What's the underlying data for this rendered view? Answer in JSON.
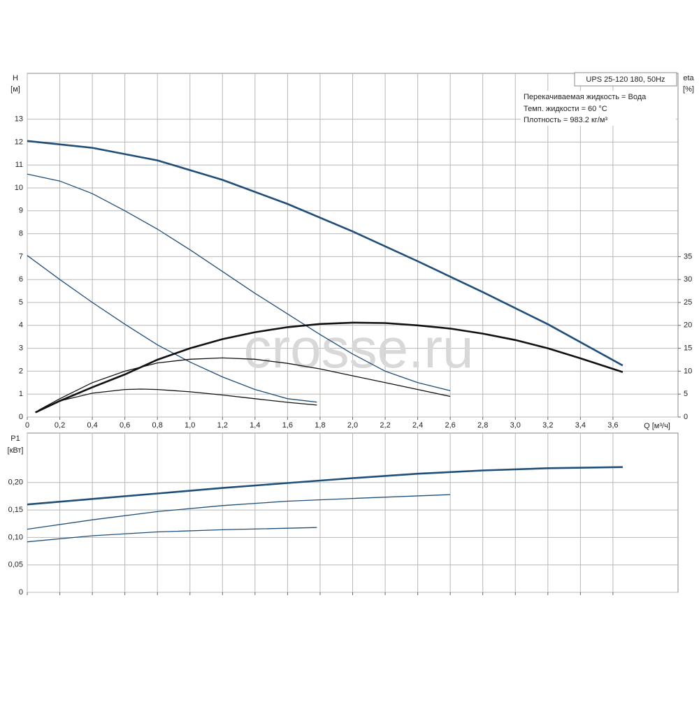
{
  "chart_data": [
    {
      "type": "line",
      "title": "UPS 25-120 180, 50Hz",
      "notes": [
        "Перекачиваемая жидкость = Вода",
        "Темп. жидкости = 60 °C",
        "Плотность = 983.2 кг/м³"
      ],
      "watermark": "crosse.ru",
      "y_label": "H",
      "y_unit": "[м]",
      "y2_label": "eta",
      "y2_unit": "[%]",
      "x_label": "Q [м³/ч]",
      "xlim": [
        0,
        4.0
      ],
      "xticks": [
        0,
        {
          "value": 0.2,
          "label": "0,2"
        },
        {
          "value": 0.4,
          "label": "0,4"
        },
        {
          "value": 0.6,
          "label": "0,6"
        },
        {
          "value": 0.8,
          "label": "0,8"
        },
        {
          "value": 1.0,
          "label": "1,0"
        },
        {
          "value": 1.2,
          "label": "1,2"
        },
        {
          "value": 1.4,
          "label": "1,4"
        },
        {
          "value": 1.6,
          "label": "1,6"
        },
        {
          "value": 1.8,
          "label": "1,8"
        },
        {
          "value": 2.0,
          "label": "2,0"
        },
        {
          "value": 2.2,
          "label": "2,2"
        },
        {
          "value": 2.4,
          "label": "2,4"
        },
        {
          "value": 2.6,
          "label": "2,6"
        },
        {
          "value": 2.8,
          "label": "2,8"
        },
        {
          "value": 3.0,
          "label": "3,0"
        },
        {
          "value": 3.2,
          "label": "3,2"
        },
        {
          "value": 3.4,
          "label": "3,4"
        },
        {
          "value": 3.6,
          "label": "3,6"
        }
      ],
      "ylim": [
        0,
        15
      ],
      "yticks": [
        0,
        1,
        2,
        3,
        4,
        5,
        6,
        7,
        8,
        9,
        10,
        11,
        12,
        13
      ],
      "y2lim": [
        0,
        75
      ],
      "y2ticks": [
        0,
        5,
        10,
        15,
        20,
        25,
        30,
        35
      ],
      "grid": true,
      "series": [
        {
          "color": "#1f4e79",
          "x": [
            0,
            0.4,
            0.8,
            1.2,
            1.6,
            2.0,
            2.4,
            2.8,
            3.2,
            3.66
          ],
          "values": [
            12.05,
            11.75,
            11.2,
            10.35,
            9.3,
            8.1,
            6.8,
            5.45,
            4.05,
            2.25
          ]
        },
        {
          "color": "#1f4e79",
          "x": [
            0,
            0.2,
            0.4,
            0.6,
            0.8,
            1.0,
            1.2,
            1.4,
            1.6,
            1.8,
            2.0,
            2.2,
            2.4,
            2.6
          ],
          "values": [
            10.6,
            10.3,
            9.75,
            9.0,
            8.2,
            7.3,
            6.35,
            5.4,
            4.5,
            3.6,
            2.75,
            2.0,
            1.5,
            1.15
          ]
        },
        {
          "color": "#1f4e79",
          "x": [
            0,
            0.2,
            0.4,
            0.6,
            0.8,
            1.0,
            1.2,
            1.4,
            1.6,
            1.78
          ],
          "values": [
            7.05,
            6.0,
            5.0,
            4.05,
            3.15,
            2.4,
            1.75,
            1.2,
            0.8,
            0.65
          ]
        },
        {
          "color": "#111111",
          "axis": "y2",
          "x": [
            0.05,
            0.2,
            0.4,
            0.6,
            0.8,
            1.0,
            1.2,
            1.4,
            1.6,
            1.8,
            2.0,
            2.2,
            2.4,
            2.6,
            2.8,
            3.0,
            3.2,
            3.4,
            3.66
          ],
          "values": [
            1,
            3.5,
            6.5,
            9.3,
            12.5,
            15,
            17,
            18.5,
            19.6,
            20.3,
            20.6,
            20.5,
            20.0,
            19.3,
            18.2,
            16.8,
            15.0,
            12.8,
            9.8
          ]
        },
        {
          "color": "#111111",
          "axis": "y2",
          "x": [
            0.07,
            0.2,
            0.4,
            0.6,
            0.8,
            1.0,
            1.2,
            1.4,
            1.6,
            1.8,
            2.0,
            2.2,
            2.4,
            2.6
          ],
          "values": [
            1.5,
            4,
            7.5,
            10,
            11.8,
            12.6,
            12.9,
            12.6,
            11.7,
            10.5,
            9.0,
            7.5,
            6.0,
            4.5
          ]
        },
        {
          "color": "#111111",
          "axis": "y2",
          "x": [
            0.1,
            0.2,
            0.4,
            0.6,
            0.7,
            0.8,
            1.0,
            1.2,
            1.4,
            1.6,
            1.78
          ],
          "values": [
            2,
            3.5,
            5.2,
            6.0,
            6.1,
            6.0,
            5.5,
            4.8,
            4.0,
            3.2,
            2.6
          ]
        }
      ]
    },
    {
      "type": "line",
      "y_label": "P1",
      "y_unit": "[кВт]",
      "xlim": [
        0,
        4.0
      ],
      "ylim": [
        0,
        0.29
      ],
      "yticks": [
        0,
        {
          "value": 0.05,
          "label": "0,05"
        },
        {
          "value": 0.1,
          "label": "0,10"
        },
        {
          "value": 0.15,
          "label": "0,15"
        },
        {
          "value": 0.2,
          "label": "0,20"
        }
      ],
      "grid": true,
      "series": [
        {
          "color": "#1f4e79",
          "x": [
            0,
            0.4,
            0.8,
            1.2,
            1.6,
            2.0,
            2.4,
            2.8,
            3.2,
            3.66
          ],
          "values": [
            0.16,
            0.17,
            0.18,
            0.19,
            0.199,
            0.208,
            0.216,
            0.222,
            0.226,
            0.228
          ]
        },
        {
          "color": "#1f4e79",
          "x": [
            0,
            0.4,
            0.8,
            1.2,
            1.6,
            2.0,
            2.6
          ],
          "values": [
            0.115,
            0.132,
            0.147,
            0.158,
            0.166,
            0.171,
            0.178
          ]
        },
        {
          "color": "#1f4e79",
          "x": [
            0,
            0.4,
            0.8,
            1.2,
            1.78
          ],
          "values": [
            0.092,
            0.103,
            0.11,
            0.114,
            0.118
          ]
        }
      ]
    }
  ]
}
